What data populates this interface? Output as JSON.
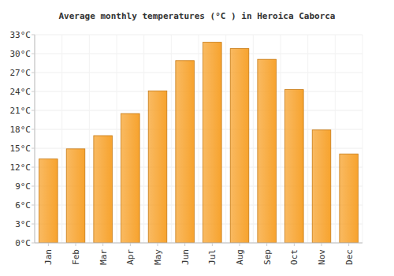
{
  "chart_data": {
    "type": "bar",
    "title": "Average monthly temperatures (°C ) in Heroica Caborca",
    "categories": [
      "Jan",
      "Feb",
      "Mar",
      "Apr",
      "May",
      "Jun",
      "Jul",
      "Aug",
      "Sep",
      "Oct",
      "Nov",
      "Dec"
    ],
    "values": [
      13.3,
      14.9,
      17.0,
      20.5,
      24.1,
      28.9,
      31.8,
      30.8,
      29.1,
      24.3,
      17.9,
      14.1
    ],
    "color": "#f7a32e",
    "ylim": [
      0,
      33
    ],
    "yticks": [
      {
        "value": 0,
        "label": "0°C"
      },
      {
        "value": 3,
        "label": "3°C"
      },
      {
        "value": 6,
        "label": "6°C"
      },
      {
        "value": 9,
        "label": "9°C"
      },
      {
        "value": 12,
        "label": "12°C"
      },
      {
        "value": 15,
        "label": "15°C"
      },
      {
        "value": 18,
        "label": "18°C"
      },
      {
        "value": 21,
        "label": "21°C"
      },
      {
        "value": 24,
        "label": "24°C"
      },
      {
        "value": 27,
        "label": "27°C"
      },
      {
        "value": 30,
        "label": "30°C"
      },
      {
        "value": 33,
        "label": "33°C"
      }
    ],
    "grid": true
  }
}
